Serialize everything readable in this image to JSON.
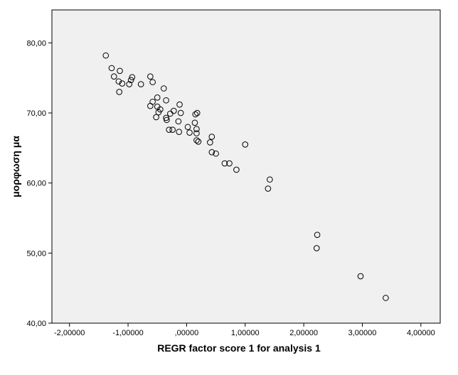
{
  "chart_data": {
    "type": "scatter",
    "xlabel": "REGR factor score   1 for analysis 1",
    "ylabel": "μορφωση μα",
    "xlim": [
      -2.3,
      4.33
    ],
    "ylim": [
      40,
      84.7
    ],
    "xticks": [
      -2,
      -1,
      0,
      1,
      2,
      3,
      4
    ],
    "xtick_labels": [
      "-2,00000",
      "-1,00000",
      ",00000",
      "1,00000",
      "2,00000",
      "3,00000",
      "4,00000"
    ],
    "yticks": [
      40,
      50,
      60,
      70,
      80
    ],
    "ytick_labels": [
      "40,00",
      "50,00",
      "60,00",
      "70,00",
      "80,00"
    ],
    "grid": false,
    "colors": {
      "plot_background": "#f0f0f0",
      "marker_stroke": "#000000",
      "marker_fill": "none"
    },
    "points": [
      {
        "x": -1.38,
        "y": 78.2
      },
      {
        "x": -1.28,
        "y": 76.4
      },
      {
        "x": -1.24,
        "y": 75.2
      },
      {
        "x": -1.14,
        "y": 76.0
      },
      {
        "x": -1.16,
        "y": 74.5
      },
      {
        "x": -1.1,
        "y": 74.2
      },
      {
        "x": -1.15,
        "y": 73.0
      },
      {
        "x": -0.95,
        "y": 74.7
      },
      {
        "x": -0.93,
        "y": 75.1
      },
      {
        "x": -0.98,
        "y": 74.1
      },
      {
        "x": -0.78,
        "y": 74.1
      },
      {
        "x": -0.62,
        "y": 75.2
      },
      {
        "x": -0.58,
        "y": 74.4
      },
      {
        "x": -0.39,
        "y": 73.5
      },
      {
        "x": -0.5,
        "y": 72.2
      },
      {
        "x": -0.58,
        "y": 71.6
      },
      {
        "x": -0.62,
        "y": 71.0
      },
      {
        "x": -0.35,
        "y": 71.8
      },
      {
        "x": -0.5,
        "y": 70.9
      },
      {
        "x": -0.45,
        "y": 70.5
      },
      {
        "x": -0.48,
        "y": 70.1
      },
      {
        "x": -0.52,
        "y": 69.4
      },
      {
        "x": -0.28,
        "y": 69.9
      },
      {
        "x": -0.22,
        "y": 70.3
      },
      {
        "x": -0.35,
        "y": 69.3
      },
      {
        "x": -0.34,
        "y": 69.0
      },
      {
        "x": -0.12,
        "y": 71.2
      },
      {
        "x": -0.1,
        "y": 70.0
      },
      {
        "x": -0.14,
        "y": 68.8
      },
      {
        "x": -0.3,
        "y": 67.6
      },
      {
        "x": -0.24,
        "y": 67.6
      },
      {
        "x": -0.13,
        "y": 67.3
      },
      {
        "x": 0.02,
        "y": 68.0
      },
      {
        "x": 0.05,
        "y": 67.2
      },
      {
        "x": 0.15,
        "y": 69.8
      },
      {
        "x": 0.18,
        "y": 70.0
      },
      {
        "x": 0.14,
        "y": 68.6
      },
      {
        "x": 0.17,
        "y": 67.7
      },
      {
        "x": 0.17,
        "y": 67.1
      },
      {
        "x": 0.17,
        "y": 66.1
      },
      {
        "x": 0.2,
        "y": 65.9
      },
      {
        "x": 0.43,
        "y": 66.6
      },
      {
        "x": 0.4,
        "y": 65.8
      },
      {
        "x": 0.43,
        "y": 64.4
      },
      {
        "x": 0.5,
        "y": 64.2
      },
      {
        "x": 0.65,
        "y": 62.8
      },
      {
        "x": 0.73,
        "y": 62.8
      },
      {
        "x": 0.85,
        "y": 61.9
      },
      {
        "x": 1.0,
        "y": 65.5
      },
      {
        "x": 1.42,
        "y": 60.5
      },
      {
        "x": 1.39,
        "y": 59.2
      },
      {
        "x": 2.23,
        "y": 52.6
      },
      {
        "x": 2.22,
        "y": 50.7
      },
      {
        "x": 2.97,
        "y": 46.7
      },
      {
        "x": 3.4,
        "y": 43.6
      }
    ]
  }
}
